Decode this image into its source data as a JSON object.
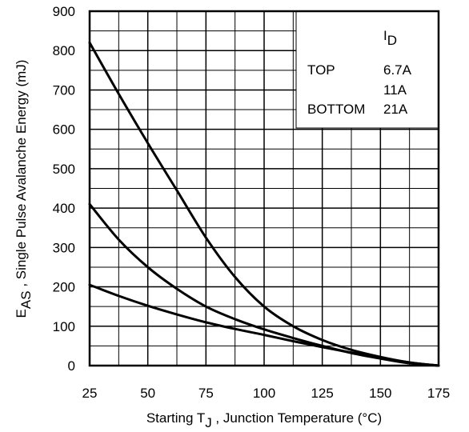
{
  "chart_data": {
    "type": "line",
    "title": "",
    "xlabel": {
      "pre": "Starting T",
      "sub": "J",
      "post": " , Junction Temperature (°C)"
    },
    "ylabel": {
      "pre": "E",
      "sub": "AS",
      "post": " , Single Pulse Avalanche Energy (mJ)"
    },
    "xlim": [
      25,
      175
    ],
    "ylim": [
      0,
      900
    ],
    "xticks": [
      "25",
      "50",
      "75",
      "100",
      "125",
      "150",
      "175"
    ],
    "yticks": [
      "0",
      "100",
      "200",
      "300",
      "400",
      "500",
      "600",
      "700",
      "800",
      "900"
    ],
    "grid": true,
    "legend": {
      "placement": "top-right",
      "header": {
        "pre": "I",
        "sub": "D"
      },
      "rows": [
        {
          "label": "TOP",
          "value": "6.7A"
        },
        {
          "label": "",
          "value": "11A"
        },
        {
          "label": "BOTTOM",
          "value": "21A"
        }
      ]
    },
    "x": [
      25,
      37.5,
      50,
      62.5,
      75,
      87.5,
      100,
      112.5,
      125,
      137.5,
      150,
      162.5,
      175
    ],
    "series": [
      {
        "name": "6.7A",
        "values": [
          820,
          690,
          565,
          445,
          325,
          225,
          150,
          100,
          65,
          40,
          22,
          8,
          0
        ]
      },
      {
        "name": "11A",
        "values": [
          410,
          320,
          250,
          195,
          150,
          118,
          92,
          70,
          50,
          32,
          18,
          6,
          0
        ]
      },
      {
        "name": "21A",
        "values": [
          205,
          177,
          152,
          130,
          110,
          93,
          78,
          62,
          47,
          33,
          20,
          8,
          0
        ]
      }
    ],
    "colors": {
      "line": "#000000",
      "grid": "#000000",
      "background": "#ffffff"
    }
  }
}
